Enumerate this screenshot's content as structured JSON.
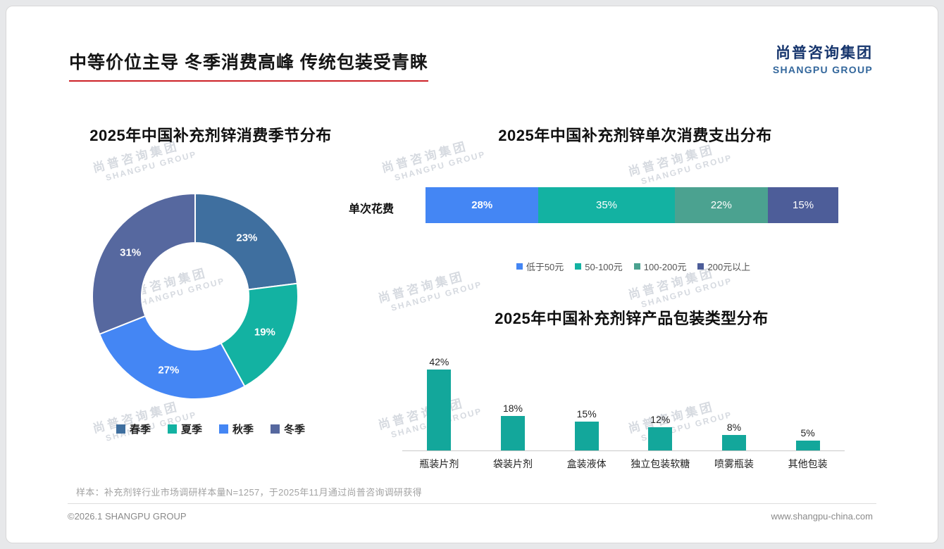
{
  "header": {
    "title": "中等价位主导 冬季消费高峰 传统包装受青睐",
    "logo_cn": "尚普咨询集团",
    "logo_en": "SHANGPU GROUP"
  },
  "watermark": {
    "cn": "尚普咨询集团",
    "en": "SHANGPU GROUP"
  },
  "chart_data": [
    {
      "type": "pie",
      "subtype": "donut",
      "title": "2025年中国补充剂锌消费季节分布",
      "categories": [
        "春季",
        "夏季",
        "秋季",
        "冬季"
      ],
      "values": [
        23,
        19,
        27,
        31
      ],
      "unit": "%",
      "colors": [
        "#3f6f9f",
        "#13b2a2",
        "#4486f4",
        "#56689f"
      ],
      "legend_position": "bottom"
    },
    {
      "type": "bar",
      "subtype": "horizontal-stacked",
      "title": "2025年中国补充剂锌单次消费支出分布",
      "row_label": "单次花费",
      "categories": [
        "低于50元",
        "50-100元",
        "100-200元",
        "200元以上"
      ],
      "values": [
        28,
        35,
        22,
        15
      ],
      "unit": "%",
      "colors": [
        "#4486f4",
        "#13b2a2",
        "#4ba290",
        "#4d5d99"
      ],
      "legend_position": "bottom"
    },
    {
      "type": "bar",
      "subtype": "vertical",
      "title": "2025年中国补充剂锌产品包装类型分布",
      "categories": [
        "瓶装片剂",
        "袋装片剂",
        "盒装液体",
        "独立包装软糖",
        "喷雾瓶装",
        "其他包装"
      ],
      "values": [
        42,
        18,
        15,
        12,
        8,
        5
      ],
      "unit": "%",
      "color": "#13a79b",
      "ylim": [
        0,
        45
      ],
      "grid": false
    }
  ],
  "footnote": "样本：补充剂锌行业市场调研样本量N=1257，于2025年11月通过尚普咨询调研获得",
  "footer": {
    "left": "©2026.1 SHANGPU GROUP",
    "right": "www.shangpu-china.com"
  }
}
